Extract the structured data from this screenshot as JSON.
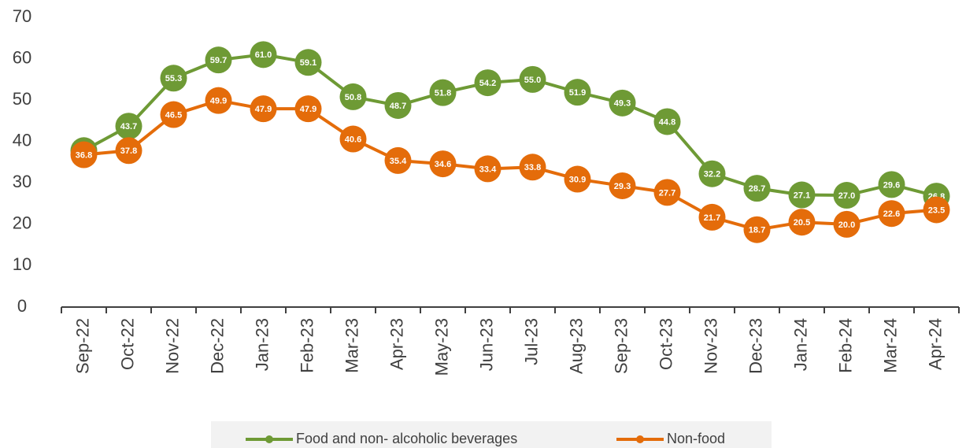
{
  "chart_data": {
    "type": "line",
    "categories": [
      "Sep-22",
      "Oct-22",
      "Nov-22",
      "Dec-22",
      "Jan-23",
      "Feb-23",
      "Mar-23",
      "Apr-23",
      "May-23",
      "Jun-23",
      "Jul-23",
      "Aug-23",
      "Sep-23",
      "Oct-23",
      "Nov-23",
      "Dec-23",
      "Jan-24",
      "Feb-24",
      "Mar-24",
      "Apr-24"
    ],
    "series": [
      {
        "name": "Food and non- alcoholic beverages",
        "color": "#6e9a35",
        "values": [
          37.8,
          43.7,
          55.3,
          59.7,
          61.0,
          59.1,
          50.8,
          48.7,
          51.8,
          54.2,
          55.0,
          51.9,
          49.3,
          44.8,
          32.2,
          28.7,
          27.1,
          27.0,
          29.6,
          26.8
        ],
        "value_labels": [
          "37.8",
          "43.7",
          "55.3",
          "59.7",
          "61.0",
          "59.1",
          "50.8",
          "48.7",
          "51.8",
          "54.2",
          "55.0",
          "51.9",
          "49.3",
          "44.8",
          "32.2",
          "28.7",
          "27.1",
          "27.0",
          "29.6",
          "26.8"
        ]
      },
      {
        "name": "Non-food",
        "color": "#e46c0a",
        "values": [
          36.8,
          37.8,
          46.5,
          49.9,
          47.9,
          47.9,
          40.6,
          35.4,
          34.6,
          33.4,
          33.8,
          30.9,
          29.3,
          27.7,
          21.7,
          18.7,
          20.5,
          20.0,
          22.6,
          23.5
        ],
        "value_labels": [
          "36.8",
          "37.8",
          "46.5",
          "49.9",
          "47.9",
          "47.9",
          "40.6",
          "35.4",
          "34.6",
          "33.4",
          "33.8",
          "30.9",
          "29.3",
          "27.7",
          "21.7",
          "18.7",
          "20.5",
          "20.0",
          "22.6",
          "23.5"
        ]
      }
    ],
    "ylim": [
      0,
      70
    ],
    "yticks": [
      0,
      10,
      20,
      30,
      40,
      50,
      60,
      70
    ],
    "grid": false,
    "legend": "bottom"
  }
}
